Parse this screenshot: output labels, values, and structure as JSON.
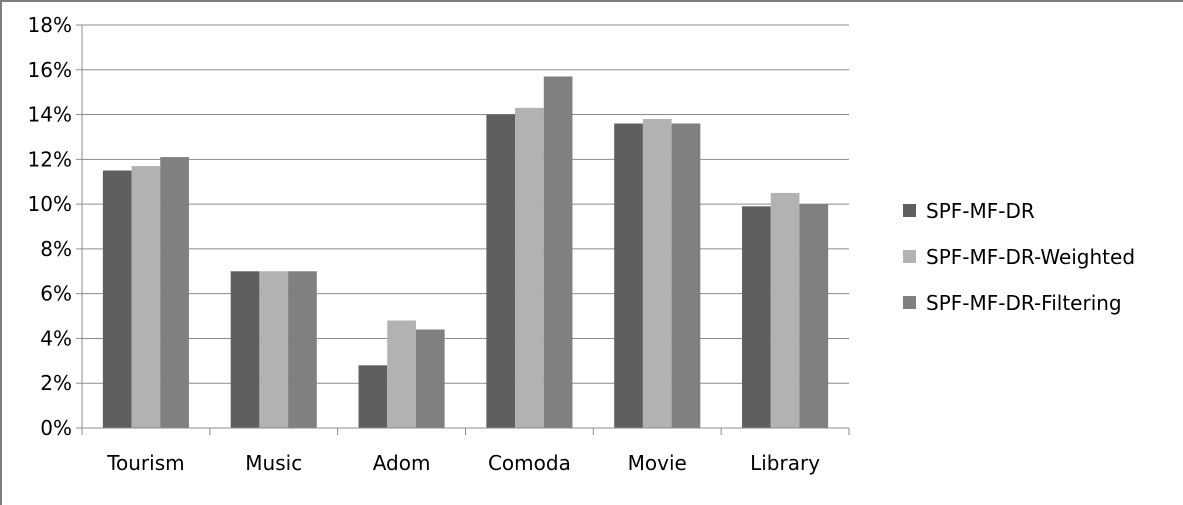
{
  "chart_data": {
    "type": "bar",
    "categories": [
      "Tourism",
      "Music",
      "Adom",
      "Comoda",
      "Movie",
      "Library"
    ],
    "series": [
      {
        "name": "SPF-MF-DR",
        "color": "#5f5f5f",
        "values": [
          11.5,
          7.0,
          2.8,
          14.0,
          13.6,
          9.9
        ]
      },
      {
        "name": "SPF-MF-DR-Weighted",
        "color": "#b2b2b2",
        "values": [
          11.7,
          7.0,
          4.8,
          14.3,
          13.8,
          10.5
        ]
      },
      {
        "name": "SPF-MF-DR-Filtering",
        "color": "#808080",
        "values": [
          12.1,
          7.0,
          4.4,
          15.7,
          13.6,
          10.0
        ]
      }
    ],
    "yticks": [
      "0%",
      "2%",
      "4%",
      "6%",
      "8%",
      "10%",
      "12%",
      "14%",
      "16%",
      "18%"
    ],
    "ylim": [
      0,
      18
    ],
    "grid": true,
    "legend_position": "right"
  }
}
